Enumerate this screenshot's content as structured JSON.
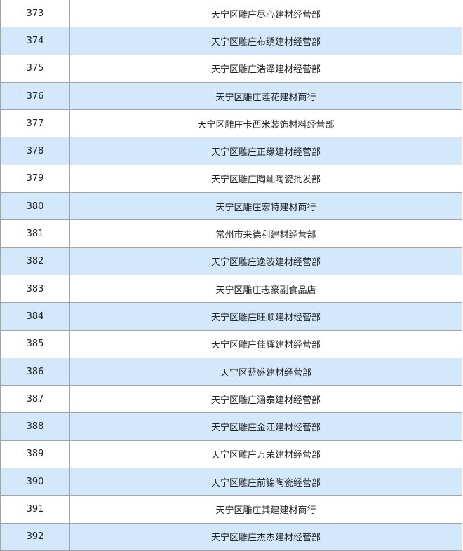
{
  "colors": {
    "alt_row": "#d3e8fb",
    "border": "#a3a3a3"
  },
  "rows": [
    {
      "no": "373",
      "name": "天宁区雕庄尽心建材经营部"
    },
    {
      "no": "374",
      "name": "天宁区雕庄布绣建材经营部"
    },
    {
      "no": "375",
      "name": "天宁区雕庄浩泽建材经营部"
    },
    {
      "no": "376",
      "name": "天宁区雕庄莲花建材商行"
    },
    {
      "no": "377",
      "name": "天宁区雕庄卡西米装饰材料经营部"
    },
    {
      "no": "378",
      "name": "天宁区雕庄正缘建材经营部"
    },
    {
      "no": "379",
      "name": "天宁区雕庄陶灿陶瓷批发部"
    },
    {
      "no": "380",
      "name": "天宁区雕庄宏特建材商行"
    },
    {
      "no": "381",
      "name": "常州市来德利建材经营部"
    },
    {
      "no": "382",
      "name": "天宁区雕庄逸波建材经营部"
    },
    {
      "no": "383",
      "name": "天宁区雕庄志豪副食品店"
    },
    {
      "no": "384",
      "name": "天宁区雕庄旺顺建材经营部"
    },
    {
      "no": "385",
      "name": "天宁区雕庄佳辉建材经营部"
    },
    {
      "no": "386",
      "name": "天宁区蓝盛建材经营部"
    },
    {
      "no": "387",
      "name": "天宁区雕庄涵泰建材经营部"
    },
    {
      "no": "388",
      "name": "天宁区雕庄金江建材经营部"
    },
    {
      "no": "389",
      "name": "天宁区雕庄万荣建材经营部"
    },
    {
      "no": "390",
      "name": "天宁区雕庄前锦陶瓷经营部"
    },
    {
      "no": "391",
      "name": "天宁区雕庄其建建材商行"
    },
    {
      "no": "392",
      "name": "天宁区雕庄杰杰建材经营部"
    }
  ]
}
